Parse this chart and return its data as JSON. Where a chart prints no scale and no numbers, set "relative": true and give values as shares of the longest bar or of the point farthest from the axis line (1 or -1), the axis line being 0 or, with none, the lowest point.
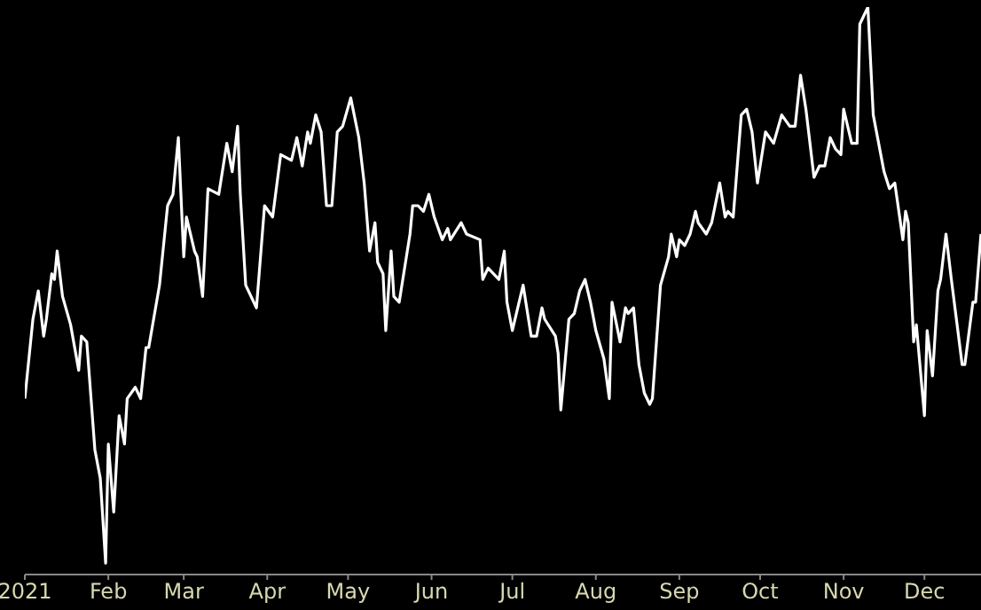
{
  "chart_data": {
    "type": "line",
    "relative": true,
    "tick_labels": "x",
    "xlim": [
      "2021-01-01",
      "2021-12-22"
    ],
    "xticks": [
      {
        "value": "2021-01-01",
        "label": "2021"
      },
      {
        "value": "2021-02-01",
        "label": "Feb"
      },
      {
        "value": "2021-03-01",
        "label": "Mar"
      },
      {
        "value": "2021-04-01",
        "label": "Apr"
      },
      {
        "value": "2021-05-01",
        "label": "May"
      },
      {
        "value": "2021-06-01",
        "label": "Jun"
      },
      {
        "value": "2021-07-01",
        "label": "Jul"
      },
      {
        "value": "2021-08-01",
        "label": "Aug"
      },
      {
        "value": "2021-09-01",
        "label": "Sep"
      },
      {
        "value": "2021-10-01",
        "label": "Oct"
      },
      {
        "value": "2021-11-01",
        "label": "Nov"
      },
      {
        "value": "2021-12-01",
        "label": "Dec"
      }
    ],
    "x": [
      "2021-01-01",
      "2021-01-04",
      "2021-01-06",
      "2021-01-08",
      "2021-01-09",
      "2021-01-11",
      "2021-01-12",
      "2021-01-13",
      "2021-01-15",
      "2021-01-18",
      "2021-01-21",
      "2021-01-22",
      "2021-01-24",
      "2021-01-27",
      "2021-01-29",
      "2021-01-31",
      "2021-02-01",
      "2021-02-03",
      "2021-02-05",
      "2021-02-07",
      "2021-02-08",
      "2021-02-11",
      "2021-02-13",
      "2021-02-15",
      "2021-02-16",
      "2021-02-20",
      "2021-02-23",
      "2021-02-25",
      "2021-02-27",
      "2021-03-01",
      "2021-03-02",
      "2021-03-05",
      "2021-03-06",
      "2021-03-08",
      "2021-03-10",
      "2021-03-14",
      "2021-03-17",
      "2021-03-19",
      "2021-03-21",
      "2021-03-22",
      "2021-03-24",
      "2021-03-28",
      "2021-03-31",
      "2021-04-03",
      "2021-04-06",
      "2021-04-10",
      "2021-04-12",
      "2021-04-14",
      "2021-04-16",
      "2021-04-17",
      "2021-04-19",
      "2021-04-21",
      "2021-04-23",
      "2021-04-25",
      "2021-04-27",
      "2021-04-29",
      "2021-05-02",
      "2021-05-05",
      "2021-05-07",
      "2021-05-09",
      "2021-05-11",
      "2021-05-12",
      "2021-05-14",
      "2021-05-15",
      "2021-05-17",
      "2021-05-18",
      "2021-05-20",
      "2021-05-24",
      "2021-05-25",
      "2021-05-27",
      "2021-05-29",
      "2021-05-31",
      "2021-06-02",
      "2021-06-05",
      "2021-06-07",
      "2021-06-08",
      "2021-06-12",
      "2021-06-14",
      "2021-06-19",
      "2021-06-20",
      "2021-06-22",
      "2021-06-26",
      "2021-06-28",
      "2021-06-29",
      "2021-07-01",
      "2021-07-05",
      "2021-07-08",
      "2021-07-10",
      "2021-07-12",
      "2021-07-13",
      "2021-07-17",
      "2021-07-18",
      "2021-07-19",
      "2021-07-22",
      "2021-07-24",
      "2021-07-26",
      "2021-07-28",
      "2021-07-30",
      "2021-08-01",
      "2021-08-04",
      "2021-08-06",
      "2021-08-07",
      "2021-08-10",
      "2021-08-12",
      "2021-08-13",
      "2021-08-15",
      "2021-08-17",
      "2021-08-19",
      "2021-08-21",
      "2021-08-22",
      "2021-08-25",
      "2021-08-28",
      "2021-08-29",
      "2021-08-31",
      "2021-09-01",
      "2021-09-03",
      "2021-09-05",
      "2021-09-07",
      "2021-09-08",
      "2021-09-11",
      "2021-09-13",
      "2021-09-16",
      "2021-09-18",
      "2021-09-19",
      "2021-09-21",
      "2021-09-24",
      "2021-09-26",
      "2021-09-28",
      "2021-09-30",
      "2021-10-03",
      "2021-10-06",
      "2021-10-09",
      "2021-10-12",
      "2021-10-14",
      "2021-10-16",
      "2021-10-18",
      "2021-10-21",
      "2021-10-23",
      "2021-10-25",
      "2021-10-27",
      "2021-10-29",
      "2021-10-31",
      "2021-11-01",
      "2021-11-04",
      "2021-11-06",
      "2021-11-07",
      "2021-11-10",
      "2021-11-12",
      "2021-11-16",
      "2021-11-18",
      "2021-11-20",
      "2021-11-23",
      "2021-11-24",
      "2021-11-25",
      "2021-11-27",
      "2021-11-28",
      "2021-12-01",
      "2021-12-02",
      "2021-12-04",
      "2021-12-06",
      "2021-12-07",
      "2021-12-09",
      "2021-12-11",
      "2021-12-15",
      "2021-12-16",
      "2021-12-19",
      "2021-12-20",
      "2021-12-22"
    ],
    "series": [
      {
        "color": "#ffffff",
        "values": [
          0.31,
          0.45,
          0.5,
          0.42,
          0.45,
          0.53,
          0.52,
          0.57,
          0.49,
          0.44,
          0.36,
          0.42,
          0.41,
          0.22,
          0.17,
          0.02,
          0.23,
          0.11,
          0.28,
          0.23,
          0.31,
          0.33,
          0.31,
          0.4,
          0.4,
          0.51,
          0.65,
          0.67,
          0.77,
          0.56,
          0.63,
          0.57,
          0.56,
          0.49,
          0.68,
          0.67,
          0.76,
          0.71,
          0.79,
          0.67,
          0.51,
          0.47,
          0.65,
          0.63,
          0.74,
          0.73,
          0.77,
          0.72,
          0.78,
          0.76,
          0.81,
          0.78,
          0.65,
          0.65,
          0.78,
          0.79,
          0.84,
          0.77,
          0.69,
          0.57,
          0.62,
          0.55,
          0.53,
          0.43,
          0.57,
          0.49,
          0.48,
          0.6,
          0.65,
          0.65,
          0.64,
          0.67,
          0.63,
          0.59,
          0.61,
          0.59,
          0.62,
          0.6,
          0.59,
          0.52,
          0.54,
          0.52,
          0.57,
          0.48,
          0.43,
          0.51,
          0.42,
          0.42,
          0.47,
          0.45,
          0.42,
          0.39,
          0.29,
          0.45,
          0.46,
          0.5,
          0.52,
          0.48,
          0.43,
          0.38,
          0.31,
          0.48,
          0.41,
          0.47,
          0.46,
          0.47,
          0.37,
          0.32,
          0.3,
          0.31,
          0.51,
          0.56,
          0.6,
          0.56,
          0.59,
          0.58,
          0.6,
          0.64,
          0.62,
          0.6,
          0.62,
          0.69,
          0.63,
          0.64,
          0.63,
          0.81,
          0.82,
          0.78,
          0.69,
          0.78,
          0.76,
          0.81,
          0.79,
          0.79,
          0.88,
          0.82,
          0.7,
          0.72,
          0.72,
          0.77,
          0.75,
          0.74,
          0.82,
          0.76,
          0.76,
          0.97,
          1.0,
          0.81,
          0.71,
          0.68,
          0.69,
          0.59,
          0.64,
          0.62,
          0.41,
          0.44,
          0.28,
          0.43,
          0.35,
          0.5,
          0.52,
          0.6,
          0.52,
          0.37,
          0.37,
          0.48,
          0.48,
          0.6
        ]
      }
    ]
  }
}
